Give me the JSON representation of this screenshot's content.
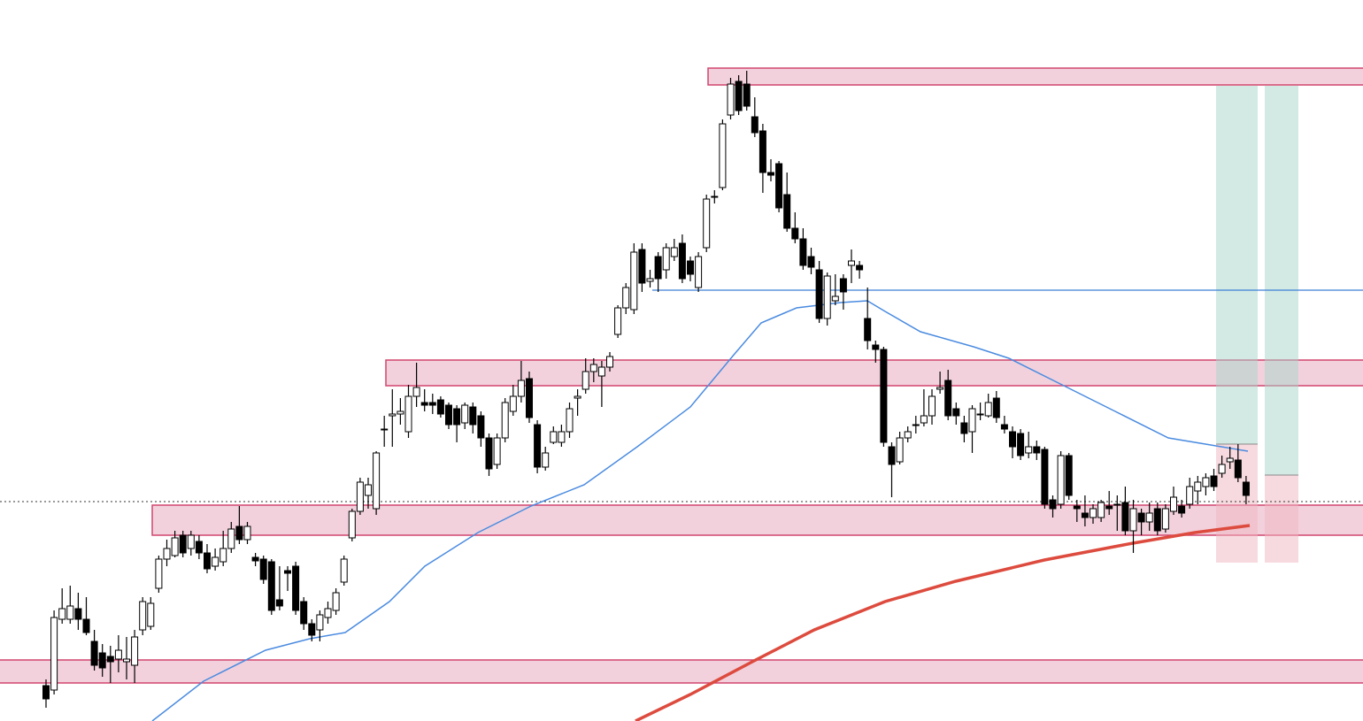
{
  "chart_data": {
    "type": "candlestick",
    "ylim": [
      0,
      815
    ],
    "bull_color": "#ffffff",
    "bear_color": "#000000",
    "open": [
      40,
      35,
      115,
      115,
      127,
      115,
      90,
      77,
      73,
      70,
      67,
      63,
      103,
      107,
      150,
      183,
      187,
      210,
      195,
      203,
      190,
      175,
      180,
      195,
      220,
      205,
      185,
      183,
      180,
      137,
      170,
      175,
      135,
      110,
      103,
      117,
      125,
      157,
      207,
      237,
      255,
      240,
      330,
      345,
      347,
      327,
      367,
      360,
      360,
      363,
      357,
      353,
      337,
      355,
      345,
      320,
      290,
      320,
      350,
      367,
      387,
      335,
      287,
      315,
      315,
      327,
      365,
      375,
      395,
      390,
      400,
      437,
      467,
      465,
      533,
      497,
      525,
      510,
      525,
      540,
      520,
      490,
      535,
      593,
      603,
      685,
      723,
      720,
      683,
      667,
      620,
      630,
      595,
      557,
      545,
      525,
      510,
      455,
      475,
      500,
      515,
      515,
      455,
      425,
      420,
      310,
      293,
      320,
      335,
      337,
      345,
      375,
      385,
      353,
      337,
      327,
      347,
      345,
      365,
      335,
      327,
      325,
      303,
      310,
      307,
      250,
      245,
      300,
      243,
      235,
      230,
      230,
      243,
      245,
      247,
      215,
      235,
      225,
      240,
      217,
      237,
      243,
      245,
      260,
      265,
      277,
      280,
      293,
      295,
      270
    ],
    "high": [
      47,
      125,
      150,
      153,
      145,
      140,
      103,
      87,
      85,
      97,
      95,
      103,
      140,
      140,
      187,
      205,
      215,
      215,
      215,
      210,
      200,
      195,
      215,
      225,
      243,
      225,
      190,
      187,
      183,
      175,
      175,
      180,
      140,
      115,
      125,
      135,
      150,
      187,
      240,
      275,
      275,
      305,
      345,
      375,
      365,
      380,
      405,
      375,
      370,
      367,
      360,
      357,
      360,
      360,
      350,
      325,
      325,
      365,
      380,
      407,
      395,
      340,
      310,
      333,
      335,
      360,
      375,
      410,
      410,
      407,
      417,
      470,
      495,
      540,
      540,
      510,
      530,
      540,
      545,
      550,
      525,
      530,
      595,
      600,
      680,
      727,
      730,
      735,
      705,
      675,
      635,
      633,
      620,
      575,
      557,
      535,
      520,
      507,
      505,
      505,
      533,
      520,
      490,
      430,
      423,
      315,
      327,
      333,
      345,
      375,
      375,
      395,
      397,
      360,
      345,
      357,
      360,
      370,
      373,
      345,
      333,
      330,
      327,
      317,
      310,
      255,
      305,
      303,
      250,
      255,
      245,
      250,
      260,
      255,
      265,
      250,
      240,
      247,
      247,
      245,
      265,
      250,
      275,
      277,
      280,
      285,
      300,
      310,
      313,
      277
    ],
    "low": [
      15,
      30,
      110,
      110,
      103,
      97,
      57,
      50,
      43,
      55,
      47,
      43,
      97,
      103,
      145,
      175,
      185,
      185,
      187,
      183,
      167,
      170,
      175,
      190,
      200,
      200,
      175,
      155,
      120,
      125,
      147,
      120,
      103,
      90,
      90,
      110,
      120,
      153,
      203,
      233,
      240,
      233,
      310,
      310,
      335,
      320,
      355,
      350,
      347,
      343,
      330,
      315,
      330,
      325,
      310,
      277,
      285,
      315,
      345,
      360,
      337,
      280,
      283,
      313,
      310,
      320,
      345,
      370,
      383,
      355,
      395,
      433,
      460,
      460,
      485,
      490,
      485,
      500,
      520,
      495,
      497,
      485,
      530,
      585,
      600,
      680,
      685,
      690,
      660,
      597,
      610,
      575,
      553,
      540,
      510,
      505,
      450,
      447,
      470,
      465,
      495,
      500,
      420,
      405,
      310,
      253,
      290,
      315,
      325,
      333,
      335,
      370,
      340,
      335,
      315,
      303,
      340,
      343,
      337,
      325,
      297,
      295,
      297,
      295,
      240,
      230,
      240,
      250,
      225,
      220,
      223,
      225,
      233,
      215,
      210,
      190,
      210,
      215,
      210,
      213,
      233,
      230,
      240,
      245,
      255,
      260,
      275,
      285,
      270,
      245
    ],
    "close": [
      25,
      117,
      127,
      130,
      115,
      100,
      63,
      60,
      67,
      80,
      70,
      95,
      135,
      133,
      183,
      195,
      207,
      190,
      210,
      190,
      172,
      185,
      195,
      217,
      205,
      220,
      181,
      160,
      125,
      130,
      167,
      125,
      110,
      97,
      120,
      127,
      145,
      183,
      237,
      270,
      267,
      303,
      330,
      347,
      350,
      367,
      377,
      357,
      357,
      347,
      335,
      335,
      357,
      335,
      320,
      285,
      320,
      360,
      367,
      385,
      343,
      287,
      303,
      327,
      327,
      353,
      367,
      395,
      403,
      400,
      412,
      467,
      490,
      530,
      495,
      500,
      500,
      535,
      535,
      500,
      505,
      525,
      590,
      593,
      675,
      720,
      690,
      695,
      665,
      620,
      617,
      580,
      557,
      545,
      515,
      513,
      455,
      503,
      480,
      485,
      520,
      510,
      430,
      420,
      315,
      290,
      320,
      327,
      335,
      345,
      367,
      377,
      345,
      345,
      325,
      353,
      347,
      360,
      343,
      330,
      310,
      300,
      310,
      303,
      245,
      240,
      300,
      255,
      240,
      230,
      240,
      247,
      240,
      245,
      215,
      240,
      225,
      235,
      215,
      240,
      253,
      235,
      265,
      270,
      275,
      265,
      290,
      297,
      275,
      255
    ]
  }
}
